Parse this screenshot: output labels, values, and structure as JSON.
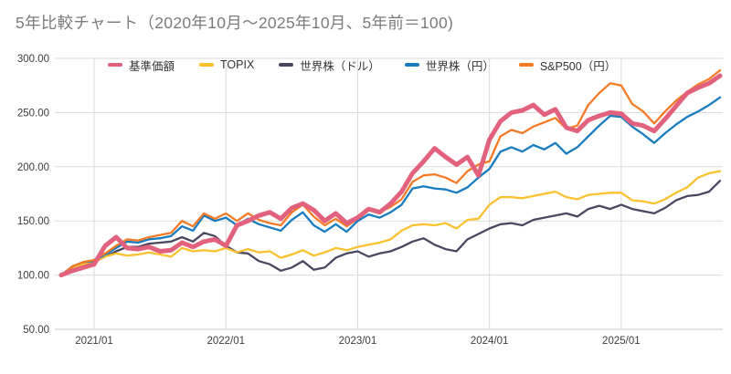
{
  "title": "5年比較チャート（2020年10月～2025年10月、5年前＝100)",
  "legend": [
    {
      "label": "基準価額",
      "color": "#e2617c"
    },
    {
      "label": "TOPIX",
      "color": "#fcc12e"
    },
    {
      "label": "世界株（ドル）",
      "color": "#4b4760"
    },
    {
      "label": "世界株（円）",
      "color": "#1a7cc0"
    },
    {
      "label": "S&P500（円）",
      "color": "#f57a26"
    }
  ],
  "chart_data": {
    "type": "line",
    "title": "5年比較チャート（2020年10月～2025年10月、5年前＝100)",
    "x_unit": "month",
    "x_range": [
      "2020/10",
      "2025/10"
    ],
    "n_points": 61,
    "ylim": [
      50,
      300
    ],
    "grid": true,
    "legend_position": "top",
    "y_ticks": [
      {
        "value": 300,
        "label": "300.00"
      },
      {
        "value": 250,
        "label": "250.00"
      },
      {
        "value": 200,
        "label": "200.00"
      },
      {
        "value": 150,
        "label": "150.00"
      },
      {
        "value": 100,
        "label": "100.00"
      },
      {
        "value": 50,
        "label": "50.00"
      }
    ],
    "x_ticks": [
      {
        "index": 3,
        "label": "2021/01"
      },
      {
        "index": 15,
        "label": "2022/01"
      },
      {
        "index": 27,
        "label": "2023/01"
      },
      {
        "index": 39,
        "label": "2024/01"
      },
      {
        "index": 51,
        "label": "2025/01"
      }
    ],
    "series": [
      {
        "name": "基準価額",
        "color": "#e2617c",
        "width": 5,
        "z": 5,
        "values": [
          100,
          104,
          107,
          110,
          127,
          135,
          125,
          124,
          126,
          122,
          123,
          130,
          126,
          131,
          133,
          127,
          146,
          150,
          155,
          158,
          152,
          162,
          166,
          160,
          150,
          157,
          148,
          153,
          161,
          158,
          166,
          177,
          194,
          205,
          217,
          209,
          202,
          209,
          192,
          225,
          242,
          250,
          252,
          257,
          248,
          253,
          236,
          233,
          243,
          247,
          250,
          249,
          240,
          238,
          233,
          244,
          256,
          268,
          273,
          277,
          284
        ]
      },
      {
        "name": "TOPIX",
        "color": "#fcc12e",
        "width": 2.3,
        "z": 2,
        "values": [
          100,
          106,
          110,
          112,
          117,
          120,
          118,
          119,
          121,
          119,
          117,
          125,
          122,
          123,
          122,
          125,
          121,
          124,
          121,
          122,
          116,
          119,
          123,
          118,
          121,
          125,
          123,
          126,
          128,
          130,
          133,
          141,
          146,
          147,
          146,
          148,
          143,
          151,
          152,
          165,
          172,
          172,
          171,
          173,
          175,
          177,
          172,
          170,
          174,
          175,
          176,
          176,
          169,
          168,
          166,
          170,
          176,
          181,
          190,
          194,
          196
        ]
      },
      {
        "name": "世界株（ドル）",
        "color": "#4b4760",
        "width": 2.3,
        "z": 1,
        "values": [
          100,
          107,
          111,
          112,
          117,
          122,
          126,
          126,
          129,
          130,
          131,
          135,
          131,
          139,
          136,
          127,
          121,
          120,
          113,
          110,
          104,
          107,
          113,
          105,
          107,
          116,
          120,
          122,
          117,
          120,
          122,
          126,
          131,
          134,
          128,
          124,
          122,
          133,
          138,
          143,
          147,
          148,
          146,
          151,
          153,
          155,
          157,
          154,
          161,
          164,
          161,
          165,
          161,
          159,
          157,
          162,
          169,
          173,
          174,
          177,
          187
        ]
      },
      {
        "name": "世界株（円）",
        "color": "#1a7cc0",
        "width": 2.3,
        "z": 3,
        "values": [
          100,
          108,
          112,
          113,
          119,
          125,
          131,
          130,
          133,
          134,
          136,
          145,
          141,
          155,
          150,
          153,
          146,
          152,
          147,
          144,
          141,
          151,
          158,
          146,
          140,
          147,
          140,
          150,
          156,
          153,
          158,
          165,
          180,
          182,
          180,
          179,
          176,
          181,
          190,
          198,
          214,
          218,
          214,
          220,
          216,
          222,
          212,
          218,
          228,
          238,
          247,
          246,
          237,
          230,
          222,
          231,
          239,
          246,
          251,
          257,
          264
        ]
      },
      {
        "name": "S&P500（円）",
        "color": "#f57a26",
        "width": 2.3,
        "z": 4,
        "values": [
          100,
          108,
          112,
          114,
          120,
          127,
          133,
          132,
          135,
          137,
          139,
          150,
          145,
          157,
          152,
          157,
          150,
          157,
          151,
          148,
          146,
          158,
          165,
          154,
          146,
          152,
          145,
          152,
          160,
          158,
          163,
          170,
          186,
          192,
          193,
          190,
          185,
          196,
          202,
          205,
          228,
          234,
          231,
          237,
          241,
          245,
          235,
          238,
          257,
          268,
          277,
          275,
          258,
          251,
          240,
          251,
          261,
          269,
          276,
          281,
          289
        ]
      }
    ]
  }
}
